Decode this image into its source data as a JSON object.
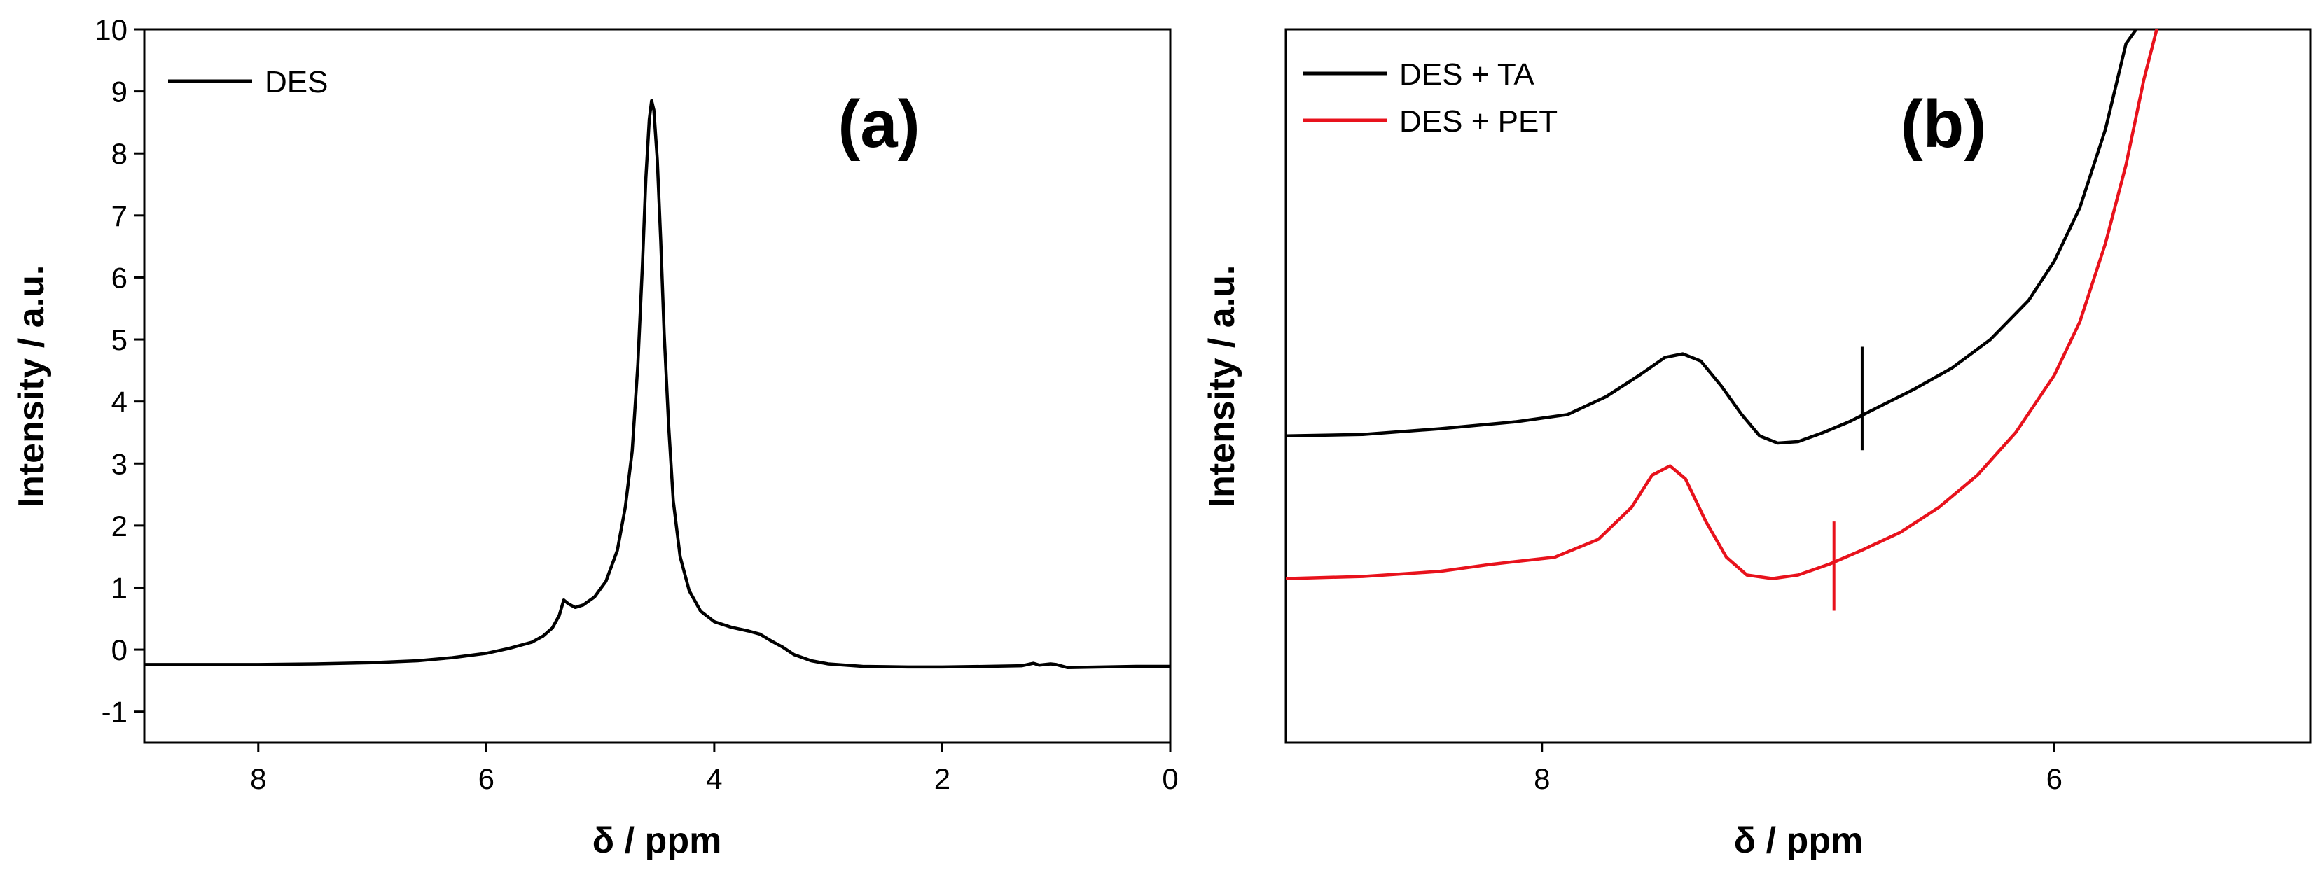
{
  "chart_data": [
    {
      "type": "line",
      "panel_label": "(a)",
      "xlabel": "δ / ppm",
      "ylabel": "Intensity / a.u.",
      "xlim": [
        9,
        0
      ],
      "ylim": [
        -1.5,
        10
      ],
      "xticks": [
        8,
        6,
        4,
        2,
        0
      ],
      "xtick_labels": [
        "8",
        "6",
        "4",
        "2",
        "0"
      ],
      "yticks": [
        -1,
        0,
        1,
        2,
        3,
        4,
        5,
        6,
        7,
        8,
        9,
        10
      ],
      "ytick_labels": [
        "-1",
        "0",
        "1",
        "2",
        "3",
        "4",
        "5",
        "6",
        "7",
        "8",
        "9",
        "10"
      ],
      "legend": {
        "position": "top-left",
        "entries": [
          "DES"
        ]
      },
      "series": [
        {
          "name": "DES",
          "color": "#000000",
          "points": [
            [
              9.0,
              -0.24
            ],
            [
              8.5,
              -0.24
            ],
            [
              8.0,
              -0.24
            ],
            [
              7.5,
              -0.23
            ],
            [
              7.0,
              -0.21
            ],
            [
              6.6,
              -0.18
            ],
            [
              6.3,
              -0.13
            ],
            [
              6.0,
              -0.06
            ],
            [
              5.8,
              0.02
            ],
            [
              5.6,
              0.12
            ],
            [
              5.5,
              0.22
            ],
            [
              5.42,
              0.35
            ],
            [
              5.36,
              0.55
            ],
            [
              5.32,
              0.8
            ],
            [
              5.28,
              0.74
            ],
            [
              5.22,
              0.68
            ],
            [
              5.15,
              0.72
            ],
            [
              5.05,
              0.85
            ],
            [
              4.95,
              1.1
            ],
            [
              4.85,
              1.6
            ],
            [
              4.78,
              2.3
            ],
            [
              4.72,
              3.2
            ],
            [
              4.67,
              4.6
            ],
            [
              4.63,
              6.2
            ],
            [
              4.6,
              7.6
            ],
            [
              4.57,
              8.55
            ],
            [
              4.55,
              8.85
            ],
            [
              4.53,
              8.7
            ],
            [
              4.5,
              7.9
            ],
            [
              4.47,
              6.6
            ],
            [
              4.44,
              5.1
            ],
            [
              4.4,
              3.6
            ],
            [
              4.36,
              2.4
            ],
            [
              4.3,
              1.5
            ],
            [
              4.22,
              0.95
            ],
            [
              4.12,
              0.62
            ],
            [
              4.0,
              0.45
            ],
            [
              3.85,
              0.36
            ],
            [
              3.7,
              0.3
            ],
            [
              3.6,
              0.25
            ],
            [
              3.5,
              0.14
            ],
            [
              3.4,
              0.04
            ],
            [
              3.3,
              -0.08
            ],
            [
              3.15,
              -0.18
            ],
            [
              3.0,
              -0.23
            ],
            [
              2.7,
              -0.27
            ],
            [
              2.3,
              -0.28
            ],
            [
              2.0,
              -0.28
            ],
            [
              1.6,
              -0.27
            ],
            [
              1.3,
              -0.26
            ],
            [
              1.2,
              -0.22
            ],
            [
              1.15,
              -0.25
            ],
            [
              1.05,
              -0.23
            ],
            [
              1.0,
              -0.24
            ],
            [
              0.9,
              -0.29
            ],
            [
              0.6,
              -0.28
            ],
            [
              0.3,
              -0.27
            ],
            [
              0.0,
              -0.27
            ]
          ]
        }
      ]
    },
    {
      "type": "line",
      "panel_label": "(b)",
      "xlabel": "δ / ppm",
      "ylabel": "Intensity / a.u.",
      "xlim": [
        9,
        5
      ],
      "ylim": [
        0,
        10
      ],
      "xticks": [
        8,
        6
      ],
      "xtick_labels": [
        "8",
        "6"
      ],
      "yticks": [],
      "ytick_labels": [],
      "legend": {
        "position": "top-left",
        "entries": [
          "DES + TA",
          "DES + PET"
        ]
      },
      "series": [
        {
          "name": "DES + TA",
          "color": "#000000",
          "points": [
            [
              9.0,
              4.3
            ],
            [
              8.7,
              4.32
            ],
            [
              8.4,
              4.4
            ],
            [
              8.1,
              4.5
            ],
            [
              7.9,
              4.6
            ],
            [
              7.75,
              4.85
            ],
            [
              7.62,
              5.15
            ],
            [
              7.52,
              5.4
            ],
            [
              7.45,
              5.45
            ],
            [
              7.38,
              5.35
            ],
            [
              7.3,
              5.0
            ],
            [
              7.22,
              4.6
            ],
            [
              7.15,
              4.3
            ],
            [
              7.08,
              4.2
            ],
            [
              7.0,
              4.22
            ],
            [
              6.9,
              4.35
            ],
            [
              6.8,
              4.5
            ],
            [
              6.7,
              4.68
            ],
            [
              6.55,
              4.95
            ],
            [
              6.4,
              5.25
            ],
            [
              6.25,
              5.65
            ],
            [
              6.1,
              6.2
            ],
            [
              6.0,
              6.75
            ],
            [
              5.9,
              7.5
            ],
            [
              5.8,
              8.6
            ],
            [
              5.72,
              9.8
            ],
            [
              5.68,
              10.0
            ]
          ]
        },
        {
          "name": "DES + PET",
          "color": "#e8121c",
          "points": [
            [
              9.0,
              2.3
            ],
            [
              8.7,
              2.33
            ],
            [
              8.4,
              2.4
            ],
            [
              8.2,
              2.5
            ],
            [
              7.95,
              2.6
            ],
            [
              7.78,
              2.85
            ],
            [
              7.65,
              3.3
            ],
            [
              7.57,
              3.75
            ],
            [
              7.5,
              3.88
            ],
            [
              7.44,
              3.7
            ],
            [
              7.36,
              3.1
            ],
            [
              7.28,
              2.6
            ],
            [
              7.2,
              2.35
            ],
            [
              7.1,
              2.3
            ],
            [
              7.0,
              2.35
            ],
            [
              6.88,
              2.5
            ],
            [
              6.75,
              2.7
            ],
            [
              6.6,
              2.95
            ],
            [
              6.45,
              3.3
            ],
            [
              6.3,
              3.75
            ],
            [
              6.15,
              4.35
            ],
            [
              6.0,
              5.15
            ],
            [
              5.9,
              5.9
            ],
            [
              5.8,
              7.0
            ],
            [
              5.72,
              8.1
            ],
            [
              5.65,
              9.3
            ],
            [
              5.6,
              10.0
            ]
          ]
        }
      ],
      "markers": [
        {
          "series": "DES + TA",
          "x": 6.75,
          "y_low": 4.1,
          "y_high": 5.55
        },
        {
          "series": "DES + PET",
          "x": 6.86,
          "y_low": 1.85,
          "y_high": 3.1
        }
      ]
    }
  ]
}
